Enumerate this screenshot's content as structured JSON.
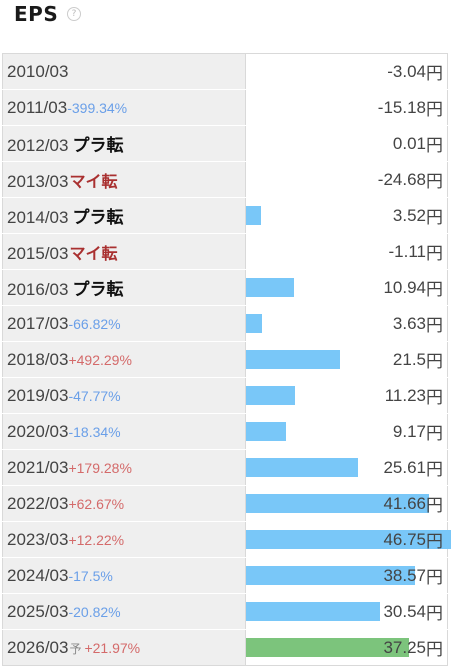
{
  "header": {
    "title": "EPS",
    "help_glyph": "?"
  },
  "units": "円",
  "scale_max": 46.75,
  "rows": [
    {
      "period": "2010/03",
      "change": "",
      "status": "",
      "forecast": false,
      "value": -3.04,
      "value_text": "-3.04"
    },
    {
      "period": "2011/03",
      "change": "-399.34%",
      "status": "",
      "forecast": false,
      "value": -15.18,
      "value_text": "-15.18"
    },
    {
      "period": "2012/03",
      "change": "",
      "status": "プラ転",
      "forecast": false,
      "value": 0.01,
      "value_text": "0.01"
    },
    {
      "period": "2013/03",
      "change": "",
      "status": "マイ転",
      "forecast": false,
      "value": -24.68,
      "value_text": "-24.68"
    },
    {
      "period": "2014/03",
      "change": "",
      "status": "プラ転",
      "forecast": false,
      "value": 3.52,
      "value_text": "3.52"
    },
    {
      "period": "2015/03",
      "change": "",
      "status": "マイ転",
      "forecast": false,
      "value": -1.11,
      "value_text": "-1.11"
    },
    {
      "period": "2016/03",
      "change": "",
      "status": "プラ転",
      "forecast": false,
      "value": 10.94,
      "value_text": "10.94"
    },
    {
      "period": "2017/03",
      "change": "-66.82%",
      "status": "",
      "forecast": false,
      "value": 3.63,
      "value_text": "3.63"
    },
    {
      "period": "2018/03",
      "change": "+492.29%",
      "status": "",
      "forecast": false,
      "value": 21.5,
      "value_text": "21.5"
    },
    {
      "period": "2019/03",
      "change": "-47.77%",
      "status": "",
      "forecast": false,
      "value": 11.23,
      "value_text": "11.23"
    },
    {
      "period": "2020/03",
      "change": "-18.34%",
      "status": "",
      "forecast": false,
      "value": 9.17,
      "value_text": "9.17"
    },
    {
      "period": "2021/03",
      "change": "+179.28%",
      "status": "",
      "forecast": false,
      "value": 25.61,
      "value_text": "25.61"
    },
    {
      "period": "2022/03",
      "change": "+62.67%",
      "status": "",
      "forecast": false,
      "value": 41.66,
      "value_text": "41.66"
    },
    {
      "period": "2023/03",
      "change": "+12.22%",
      "status": "",
      "forecast": false,
      "value": 46.75,
      "value_text": "46.75"
    },
    {
      "period": "2024/03",
      "change": "-17.5%",
      "status": "",
      "forecast": false,
      "value": 38.57,
      "value_text": "38.57"
    },
    {
      "period": "2025/03",
      "change": "-20.82%",
      "status": "",
      "forecast": false,
      "value": 30.54,
      "value_text": "30.54"
    },
    {
      "period": "2026/03",
      "change": "+21.97%",
      "status": "",
      "forecast": true,
      "forecast_mark": "予",
      "value": 37.25,
      "value_text": "37.25"
    }
  ],
  "colors": {
    "bar": "#79c7f8",
    "forecast_bar": "#7cc47c",
    "change_negative": "#6a9fe8",
    "change_positive": "#d46a6a",
    "status_minus": "#a93030"
  }
}
